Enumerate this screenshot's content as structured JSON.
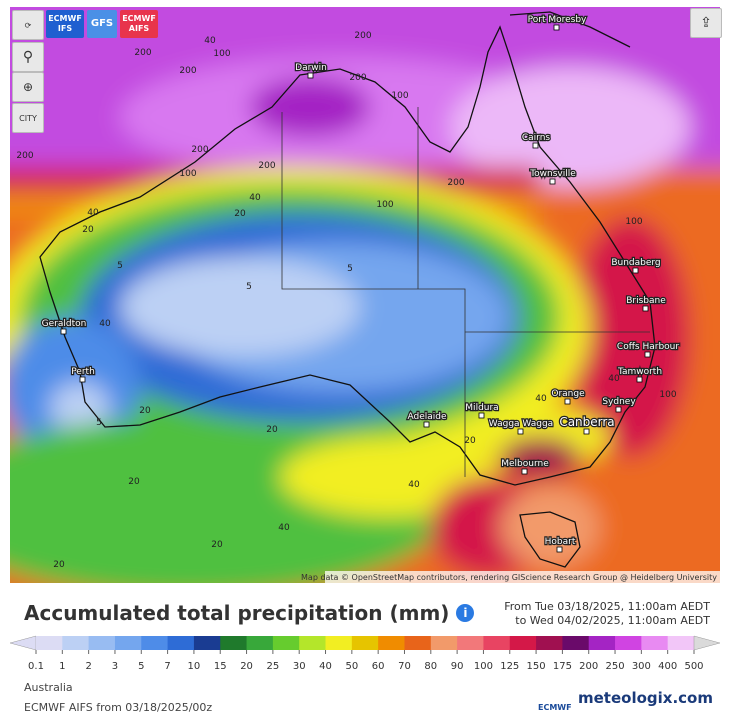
{
  "toolbar": {
    "city": "CITY"
  },
  "model_buttons": [
    {
      "line1": "ECMWF",
      "line2": "IFS"
    },
    {
      "line1": "GFS"
    },
    {
      "line1": "ECMWF",
      "line2": "AIFS"
    }
  ],
  "map": {
    "attribution": "Map data © OpenStreetMap contributors, rendering GIScience Research Group @ Heidelberg University",
    "cities": [
      "Port Moresby",
      "Darwin",
      "Cairns",
      "Townsville",
      "Bundaberg",
      "Brisbane",
      "Coffs Harbour",
      "Tamworth",
      "Geraldton",
      "Perth",
      "Orange",
      "Sydney",
      "Mildura",
      "Adelaide",
      "Wagga Wagga",
      "Canberra",
      "Melbourne",
      "Hobart"
    ],
    "contour_labels": [
      40,
      100,
      200,
      200,
      200,
      200,
      100,
      200,
      200,
      200,
      100,
      200,
      100,
      100,
      40,
      40,
      20,
      20,
      5,
      5,
      5,
      40,
      40,
      100,
      20,
      20,
      5,
      40,
      40,
      20,
      40,
      20,
      20,
      20
    ]
  },
  "header": {
    "title": "Accumulated total precipitation (mm)",
    "from": "From Tue 03/18/2025, 11:00am AEDT",
    "to": "to Wed 04/02/2025, 11:00am AEDT"
  },
  "legend": {
    "labels": [
      0.1,
      1,
      2,
      3,
      5,
      7,
      10,
      15,
      20,
      25,
      30,
      40,
      50,
      60,
      70,
      80,
      90,
      100,
      125,
      150,
      175,
      200,
      250,
      300,
      400,
      500
    ],
    "colors": [
      "#dcdcf4",
      "#bcd0f4",
      "#98bcf2",
      "#74a6ee",
      "#4e8ce8",
      "#2e6cd6",
      "#1a3c92",
      "#1f7a2c",
      "#38a83a",
      "#66cc2e",
      "#b4e62a",
      "#f2ee22",
      "#e6c400",
      "#f08c00",
      "#e8641a",
      "#f29a6a",
      "#f2787a",
      "#e84462",
      "#d41848",
      "#a01050",
      "#6a0a6a",
      "#a424c4",
      "#d044e2",
      "#e88af2",
      "#f2c6f8",
      "#dadada"
    ]
  },
  "footer": {
    "region": "Australia",
    "run": "ECMWF AIFS from 03/18/2025/00z",
    "logo1": "ECMWF",
    "logo2": "meteologix.com"
  }
}
